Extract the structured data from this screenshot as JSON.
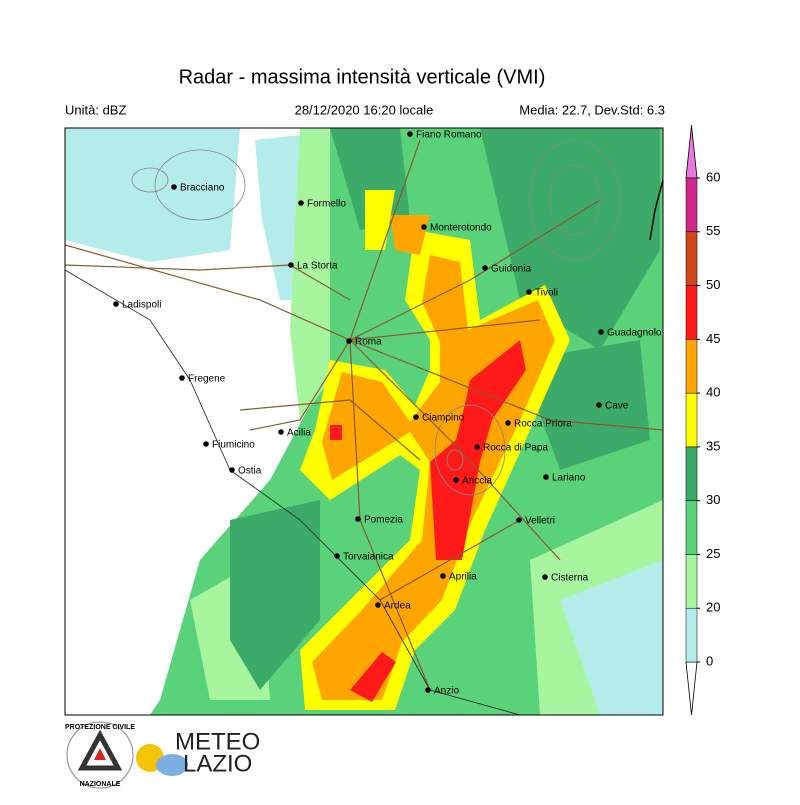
{
  "header": {
    "title": "Radar - massima intensità verticale (VMI)",
    "unit": "Unità: dBZ",
    "datetime": "28/12/2020 16:20 locale",
    "stats": "Media: 22.7, Dev.Std: 6.3"
  },
  "places": [
    "Fiano Romano",
    "Bracciano",
    "Formello",
    "Monterotondo",
    "La Storta",
    "Guidonia",
    "Ladispoli",
    "Tivoli",
    "Guadagnolo",
    "Roma",
    "Fregene",
    "Cave",
    "Ciampino",
    "Rocca Priora",
    "Acilia",
    "Fiumicino",
    "Rocca di Papa",
    "Ostia",
    "Ariccia",
    "Lariano",
    "Pomezia",
    "Velletri",
    "Torvaianica",
    "Aprilia",
    "Cisterna",
    "Ardea",
    "Anzio"
  ],
  "colorbar": {
    "ticks": [
      0,
      20,
      25,
      30,
      35,
      40,
      45,
      50,
      55,
      60
    ],
    "colors": [
      "#b4ecec",
      "#a8f5a0",
      "#5ad27a",
      "#3cab6a",
      "#ffff00",
      "#ffa500",
      "#ff1a1a",
      "#d04818",
      "#d0288a"
    ],
    "under_color": "#ffffff",
    "over_color": "#e878e0"
  },
  "logos": {
    "protezione": "PROTEZIONE CIVILE",
    "nazionale": "NAZIONALE",
    "meteo": "METEO",
    "lazio": "LAZIO"
  }
}
